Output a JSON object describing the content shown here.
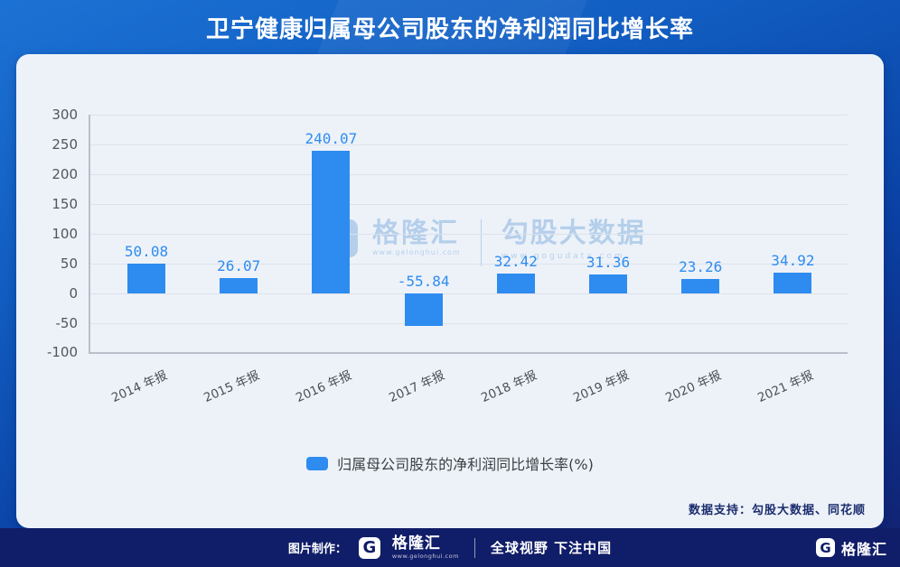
{
  "header": {
    "title": "卫宁健康归属母公司股东的净利润同比增长率"
  },
  "chart_data": {
    "type": "bar",
    "title": "卫宁健康归属母公司股东的净利润同比增长率",
    "categories": [
      "2014 年报",
      "2015 年报",
      "2016 年报",
      "2017 年报",
      "2018 年报",
      "2019 年报",
      "2020 年报",
      "2021 年报"
    ],
    "values": [
      50.08,
      26.07,
      240.07,
      -55.84,
      32.42,
      31.36,
      23.26,
      34.92
    ],
    "series_name": "归属母公司股东的净利润同比增长率(%)",
    "xlabel": "",
    "ylabel": "",
    "ylim": [
      -100,
      300
    ],
    "y_ticks": [
      300,
      250,
      200,
      150,
      100,
      50,
      0,
      -50,
      -100
    ],
    "grid": true,
    "legend_position": "bottom",
    "bar_color": "#2E8CF0",
    "label_color": "#2E8CF0"
  },
  "legend": {
    "label": "归属母公司股东的净利润同比增长率(%)"
  },
  "watermark": {
    "logo_letter": "G",
    "brand": "格隆汇",
    "brand_url": "www.gelonghui.com",
    "product": "勾股大数据",
    "product_url": "www.gogudata.com"
  },
  "card": {
    "data_support": "数据支持：勾股大数据、同花顺"
  },
  "footer": {
    "made_by": "图片制作：",
    "logo_letter": "G",
    "brand": "格隆汇",
    "brand_url": "www.gelonghui.com",
    "slogan": "全球视野 下注中国",
    "brand_right": "格隆汇"
  },
  "colors": {
    "accent_blue": "#2E8CF0",
    "card_bg": "#EDF2F9",
    "footer_navy": "#101D68",
    "data_support_text": "#1C2D6E"
  }
}
